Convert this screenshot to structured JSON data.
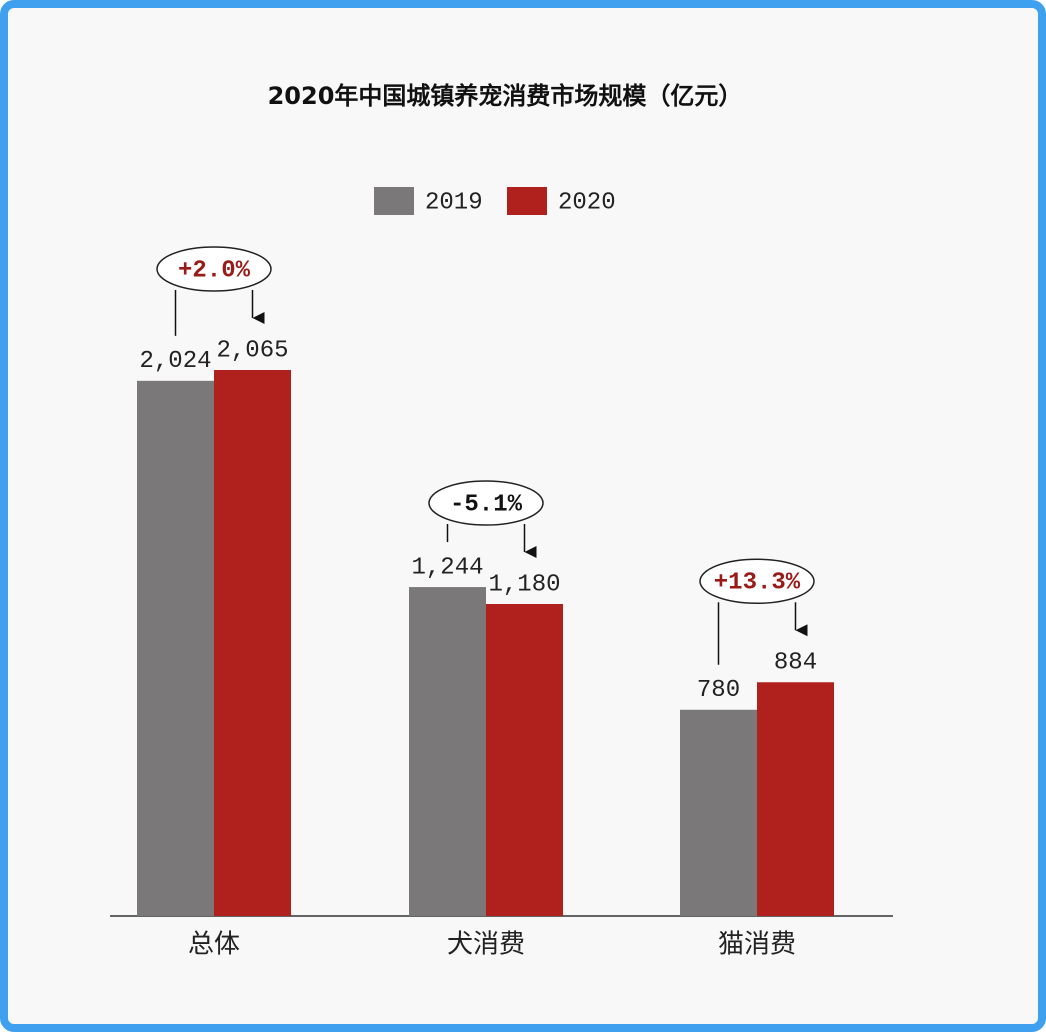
{
  "chart_data": {
    "type": "bar",
    "title": "2020年中国城镇养宠消费市场规模（亿元）",
    "categories": [
      "总体",
      "犬消费",
      "猫消费"
    ],
    "series": [
      {
        "name": "2019",
        "color": "#7a7879",
        "values": [
          2024,
          1244,
          780
        ],
        "value_labels": [
          "2,024",
          "1,244",
          "780"
        ]
      },
      {
        "name": "2020",
        "color": "#b0201c",
        "values": [
          2065,
          1180,
          884
        ],
        "value_labels": [
          "2,065",
          "1,180",
          "884"
        ]
      }
    ],
    "annotations": [
      "+2.0%",
      "-5.1%",
      "+13.3%"
    ],
    "annotation_colors": [
      "#9a1a18",
      "#111111",
      "#9a1a18"
    ]
  }
}
